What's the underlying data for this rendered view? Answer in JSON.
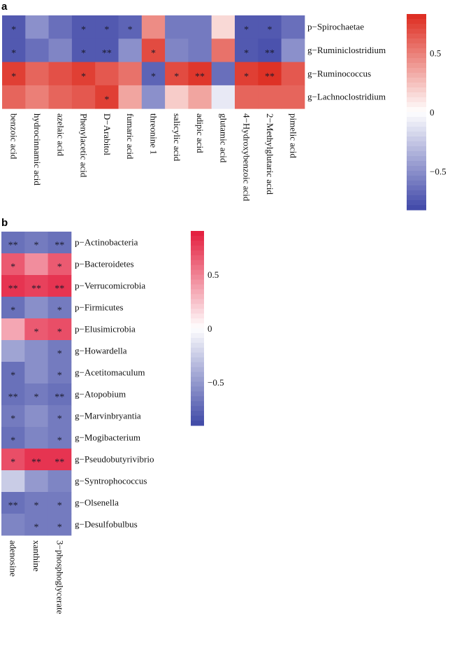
{
  "chart_data": [
    {
      "type": "heatmap",
      "panel_label": "a",
      "rows": [
        "p−Spirochaetae",
        "g−Ruminiclostridium",
        "g−Ruminococcus",
        "g−Lachnoclostridium"
      ],
      "columns": [
        "benzoic acid",
        "hydrocinnamic acid",
        "azelaic acid",
        "Phenylacetic acid",
        "D−Arabitol",
        "fumaric acid",
        "threonine 1",
        "salicylic acid",
        "adipic acid",
        "glutamic acid",
        "4−Hydroxybenzoic acid",
        "2−Methylglutaric acid",
        "pimelic acid"
      ],
      "values": [
        [
          -0.75,
          -0.5,
          -0.65,
          -0.75,
          -0.75,
          -0.7,
          0.45,
          -0.6,
          -0.6,
          0.15,
          -0.75,
          -0.75,
          -0.65
        ],
        [
          -0.75,
          -0.65,
          -0.55,
          -0.75,
          -0.75,
          -0.5,
          0.7,
          -0.55,
          -0.6,
          0.55,
          -0.75,
          -0.78,
          -0.5
        ],
        [
          0.75,
          0.6,
          0.68,
          0.75,
          0.65,
          0.55,
          -0.7,
          0.7,
          0.78,
          -0.65,
          0.75,
          0.8,
          0.65
        ],
        [
          0.6,
          0.5,
          0.6,
          0.65,
          0.75,
          0.35,
          -0.5,
          0.2,
          0.35,
          -0.1,
          0.6,
          0.6,
          0.6
        ]
      ],
      "significance": [
        [
          "*",
          "",
          "",
          "*",
          "*",
          "*",
          "",
          "",
          "",
          "",
          "*",
          "*",
          ""
        ],
        [
          "*",
          "",
          "",
          "*",
          "**",
          "",
          "*",
          "",
          "",
          "",
          "*",
          "**",
          ""
        ],
        [
          "*",
          "",
          "",
          "*",
          "",
          "",
          "*",
          "*",
          "**",
          "",
          "*",
          "**",
          ""
        ],
        [
          "",
          "",
          "",
          "",
          "*",
          "",
          "",
          "",
          "",
          "",
          "",
          "",
          ""
        ]
      ],
      "colorbar": {
        "range": [
          -0.83,
          0.83
        ],
        "ticks": [
          0.5,
          0,
          -0.5
        ],
        "tick_labels": [
          "0.5",
          "0",
          "−0.5"
        ],
        "low_color": "#3F47A8",
        "mid_color": "#FFFFFF",
        "high_color": "#DD2A1E"
      }
    },
    {
      "type": "heatmap",
      "panel_label": "b",
      "rows": [
        "p−Actinobacteria",
        "p−Bacteroidetes",
        "p−Verrucomicrobia",
        "p−Firmicutes",
        "p−Elusimicrobia",
        "g−Howardella",
        "g−Acetitomaculum",
        "g−Atopobium",
        "g−Marvinbryantia",
        "g−Mogibacterium",
        "g−Pseudobutyrivibrio",
        "g−Syntrophococcus",
        "g−Olsenella",
        "g−Desulfobulbus"
      ],
      "columns": [
        "adenosine",
        "xanthine",
        "3−phosphoglycerate"
      ],
      "values": [
        [
          -0.7,
          -0.65,
          -0.7
        ],
        [
          0.65,
          0.45,
          0.65
        ],
        [
          0.8,
          0.75,
          0.8
        ],
        [
          -0.7,
          -0.55,
          -0.65
        ],
        [
          0.35,
          0.65,
          0.7
        ],
        [
          -0.45,
          -0.55,
          -0.65
        ],
        [
          -0.7,
          -0.55,
          -0.65
        ],
        [
          -0.7,
          -0.65,
          -0.7
        ],
        [
          -0.65,
          -0.55,
          -0.65
        ],
        [
          -0.7,
          -0.6,
          -0.65
        ],
        [
          0.7,
          0.8,
          0.8
        ],
        [
          -0.25,
          -0.5,
          -0.6
        ],
        [
          -0.7,
          -0.65,
          -0.65
        ],
        [
          -0.6,
          -0.65,
          -0.65
        ]
      ],
      "significance": [
        [
          "**",
          "*",
          "**"
        ],
        [
          "*",
          "",
          "*"
        ],
        [
          "**",
          "**",
          "**"
        ],
        [
          "*",
          "",
          "*"
        ],
        [
          "",
          "*",
          "*"
        ],
        [
          "",
          "",
          "*"
        ],
        [
          "*",
          "",
          "*"
        ],
        [
          "**",
          "*",
          "**"
        ],
        [
          "*",
          "",
          "*"
        ],
        [
          "*",
          "",
          "*"
        ],
        [
          "*",
          "**",
          "**"
        ],
        [
          "",
          "",
          ""
        ],
        [
          "**",
          "*",
          "*"
        ],
        [
          "",
          "*",
          "*"
        ]
      ],
      "colorbar": {
        "range": [
          -0.9,
          0.9
        ],
        "ticks": [
          0.5,
          0,
          -0.5
        ],
        "tick_labels": [
          "0.5",
          "0",
          "−0.5"
        ],
        "low_color": "#3E48A6",
        "mid_color": "#FFFFFF",
        "high_color": "#E31B3B"
      }
    }
  ]
}
